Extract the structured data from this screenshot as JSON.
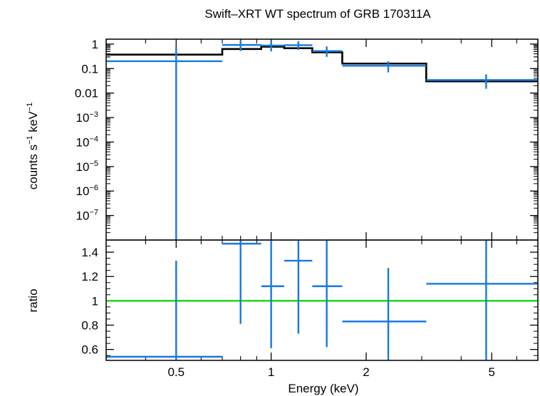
{
  "chart_data": [
    {
      "type": "scatter",
      "panel": "spectrum",
      "title": "Swift–XRT WT spectrum of GRB 170311A",
      "xlabel": "Energy (keV)",
      "ylabel_parts": [
        "counts s",
        "−1",
        " keV",
        "−1"
      ],
      "xscale": "log",
      "yscale": "log",
      "xlim": [
        0.3,
        7.0
      ],
      "ylim_log10": [
        -8.0,
        0.2
      ],
      "ytick_labels": [
        "1",
        "0.1",
        "0.01",
        "10−3",
        "10−4",
        "10−5",
        "10−6",
        "10−7"
      ],
      "grid": false,
      "colors": {
        "data": "#1778e0",
        "model": "#000000"
      },
      "data_points": [
        {
          "x": 0.5,
          "xlo": 0.3,
          "xhi": 0.7,
          "y": 0.2,
          "ylo": 1e-08,
          "yhi": 0.8
        },
        {
          "x": 0.8,
          "xlo": 0.7,
          "xhi": 0.93,
          "y": 0.92,
          "ylo": 0.52,
          "yhi": 1.4
        },
        {
          "x": 1.0,
          "xlo": 0.93,
          "xhi": 1.1,
          "y": 0.87,
          "ylo": 0.5,
          "yhi": 1.35
        },
        {
          "x": 1.22,
          "xlo": 1.1,
          "xhi": 1.35,
          "y": 0.9,
          "ylo": 0.58,
          "yhi": 1.3
        },
        {
          "x": 1.5,
          "xlo": 1.35,
          "xhi": 1.68,
          "y": 0.52,
          "ylo": 0.3,
          "yhi": 0.8
        },
        {
          "x": 2.35,
          "xlo": 1.68,
          "xhi": 3.1,
          "y": 0.13,
          "ylo": 0.07,
          "yhi": 0.2
        },
        {
          "x": 4.8,
          "xlo": 3.1,
          "xhi": 7.0,
          "y": 0.034,
          "ylo": 0.015,
          "yhi": 0.058
        }
      ],
      "model_steps": [
        {
          "xlo": 0.3,
          "xhi": 0.7,
          "y": 0.37
        },
        {
          "xlo": 0.7,
          "xhi": 0.93,
          "y": 0.63
        },
        {
          "xlo": 0.93,
          "xhi": 1.1,
          "y": 0.78
        },
        {
          "xlo": 1.1,
          "xhi": 1.35,
          "y": 0.68
        },
        {
          "xlo": 1.35,
          "xhi": 1.68,
          "y": 0.46
        },
        {
          "xlo": 1.68,
          "xhi": 3.1,
          "y": 0.16
        },
        {
          "xlo": 3.1,
          "xhi": 7.0,
          "y": 0.03
        }
      ]
    },
    {
      "type": "scatter",
      "panel": "ratio",
      "xlabel": "Energy (keV)",
      "ylabel": "ratio",
      "xscale": "log",
      "xlim": [
        0.3,
        7.0
      ],
      "ylim": [
        0.51,
        1.5
      ],
      "xtick_labels": [
        "0.5",
        "1",
        "2",
        "5"
      ],
      "xticks": [
        0.5,
        1,
        2,
        5
      ],
      "ytick_labels": [
        "0.6",
        "0.8",
        "1",
        "1.2",
        "1.4"
      ],
      "yticks": [
        0.6,
        0.8,
        1.0,
        1.2,
        1.4
      ],
      "reference_line": 1.0,
      "grid": false,
      "colors": {
        "data": "#1778e0",
        "reference": "#22dd22"
      },
      "data_points": [
        {
          "x": 0.5,
          "xlo": 0.3,
          "xhi": 0.7,
          "y": 0.54,
          "ylo": 0.51,
          "yhi": 1.33
        },
        {
          "x": 0.8,
          "xlo": 0.7,
          "xhi": 0.93,
          "y": 1.47,
          "ylo": 0.81,
          "yhi": 1.5
        },
        {
          "x": 1.0,
          "xlo": 0.93,
          "xhi": 1.1,
          "y": 1.12,
          "ylo": 0.61,
          "yhi": 1.5
        },
        {
          "x": 1.22,
          "xlo": 1.1,
          "xhi": 1.35,
          "y": 1.33,
          "ylo": 0.73,
          "yhi": 1.5
        },
        {
          "x": 1.5,
          "xlo": 1.35,
          "xhi": 1.68,
          "y": 1.12,
          "ylo": 0.62,
          "yhi": 1.5
        },
        {
          "x": 2.35,
          "xlo": 1.68,
          "xhi": 3.1,
          "y": 0.83,
          "ylo": 0.51,
          "yhi": 1.27
        },
        {
          "x": 4.8,
          "xlo": 3.1,
          "xhi": 7.0,
          "y": 1.14,
          "ylo": 0.51,
          "yhi": 1.5
        }
      ]
    }
  ]
}
